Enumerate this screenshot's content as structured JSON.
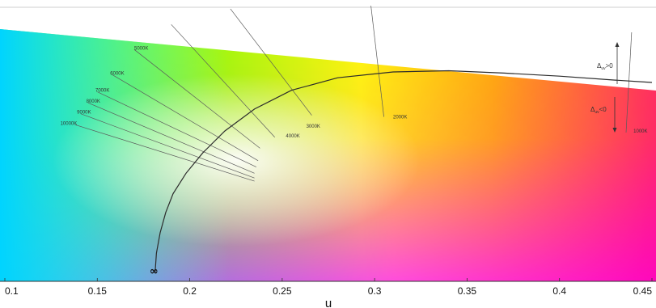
{
  "figure": {
    "x_axis": {
      "label": "u",
      "min": 0.1,
      "max": 0.45,
      "ticks": [
        {
          "value": 0.1,
          "label": "0.1"
        },
        {
          "value": 0.15,
          "label": "0.15"
        },
        {
          "value": 0.2,
          "label": "0.2"
        },
        {
          "value": 0.25,
          "label": "0.25"
        },
        {
          "value": 0.3,
          "label": "0.3"
        },
        {
          "value": 0.35,
          "label": "0.35"
        },
        {
          "value": 0.4,
          "label": "0.4"
        },
        {
          "value": 0.45,
          "label": "0.45"
        }
      ]
    },
    "v_range": [
      0.2,
      0.375
    ],
    "planckian_locus": {
      "infinity_label": "∞",
      "points": [
        [
          0.1813,
          0.206
        ],
        [
          0.182,
          0.218
        ],
        [
          0.184,
          0.231
        ],
        [
          0.187,
          0.244
        ],
        [
          0.191,
          0.256
        ],
        [
          0.198,
          0.269
        ],
        [
          0.207,
          0.282
        ],
        [
          0.219,
          0.296
        ],
        [
          0.235,
          0.31
        ],
        [
          0.255,
          0.322
        ],
        [
          0.28,
          0.33
        ],
        [
          0.31,
          0.3337
        ],
        [
          0.34,
          0.3345
        ],
        [
          0.37,
          0.333
        ],
        [
          0.4,
          0.331
        ],
        [
          0.43,
          0.3285
        ],
        [
          0.45,
          0.327
        ]
      ]
    },
    "isotherms": [
      {
        "label": "1000K",
        "from": [
          0.436,
          0.295
        ],
        "to": [
          0.439,
          0.359
        ],
        "label_at": [
          0.44,
          0.295
        ]
      },
      {
        "label": "2000K",
        "from": [
          0.305,
          0.305
        ],
        "to": [
          0.298,
          0.376
        ],
        "label_at": [
          0.31,
          0.304
        ]
      },
      {
        "label": "3000K",
        "from": [
          0.266,
          0.306
        ],
        "to": [
          0.222,
          0.374
        ],
        "label_at": [
          0.263,
          0.298
        ]
      },
      {
        "label": "4000K",
        "from": [
          0.246,
          0.292
        ],
        "to": [
          0.19,
          0.364
        ],
        "label_at": [
          0.252,
          0.292
        ]
      },
      {
        "label": "5000K",
        "from": [
          0.238,
          0.285
        ],
        "to": [
          0.17,
          0.348
        ],
        "label_at": [
          0.17,
          0.348
        ]
      },
      {
        "label": "6000K",
        "from": [
          0.237,
          0.277
        ],
        "to": [
          0.158,
          0.332
        ],
        "label_at": [
          0.157,
          0.332
        ]
      },
      {
        "label": "7000K",
        "from": [
          0.236,
          0.273
        ],
        "to": [
          0.15,
          0.321
        ],
        "label_at": [
          0.149,
          0.321
        ]
      },
      {
        "label": "8000K",
        "from": [
          0.235,
          0.269
        ],
        "to": [
          0.145,
          0.314
        ],
        "label_at": [
          0.144,
          0.314
        ]
      },
      {
        "label": "9000K",
        "from": [
          0.235,
          0.266
        ],
        "to": [
          0.141,
          0.307
        ],
        "label_at": [
          0.139,
          0.307
        ]
      },
      {
        "label": "10000K",
        "from": [
          0.235,
          0.264
        ],
        "to": [
          0.138,
          0.3
        ],
        "label_at": [
          0.13,
          0.3
        ]
      }
    ],
    "duv_annotations": [
      {
        "label": "Δuv>0",
        "direction": "up"
      },
      {
        "label": "Δuv<0",
        "direction": "down"
      }
    ],
    "colors": {
      "spectral_corners": [
        "#00c8ff",
        "#33ff33",
        "#ffff00",
        "#ff8800",
        "#ff0066",
        "#ff00ff",
        "#8855ff"
      ]
    }
  }
}
